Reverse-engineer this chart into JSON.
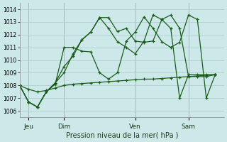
{
  "title": "Pression niveau de la mer( hPa )",
  "bg_color": "#cce8e8",
  "grid_color": "#aacccc",
  "line_color": "#1a5c1a",
  "ylim": [
    1005.5,
    1014.5
  ],
  "xlabel_color": "#1a3c1a",
  "day_labels": [
    "Jeu",
    "Dim",
    "Ven",
    "Sam"
  ],
  "day_positions": [
    1,
    5,
    13,
    19
  ],
  "xlim": [
    0,
    23
  ],
  "series_flat_x": [
    0,
    1,
    2,
    3,
    4,
    5,
    6,
    7,
    8,
    9,
    10,
    11,
    12,
    13,
    14,
    15,
    16,
    17,
    18,
    19,
    20,
    21,
    22
  ],
  "series_flat_y": [
    1008.0,
    1007.7,
    1007.5,
    1007.6,
    1007.8,
    1008.0,
    1008.1,
    1008.15,
    1008.2,
    1008.25,
    1008.3,
    1008.35,
    1008.4,
    1008.45,
    1008.5,
    1008.5,
    1008.55,
    1008.6,
    1008.65,
    1008.7,
    1008.75,
    1008.8,
    1008.85
  ],
  "series_main_x": [
    0,
    1,
    2,
    3,
    4,
    5,
    6,
    7,
    8,
    9,
    10,
    11,
    12,
    13,
    14,
    15,
    16,
    17,
    18,
    19,
    20,
    21,
    22
  ],
  "series_main_y": [
    1008.0,
    1006.7,
    1006.3,
    1007.5,
    1008.1,
    1011.0,
    1011.0,
    1010.7,
    1010.65,
    1009.0,
    1008.5,
    1009.0,
    1011.5,
    1012.2,
    1013.4,
    1012.5,
    1011.45,
    1011.0,
    1011.4,
    1013.55,
    1013.2,
    1007.0,
    1008.85
  ],
  "series_b_x": [
    0,
    1,
    2,
    3,
    4,
    5,
    6,
    7,
    8,
    9,
    10,
    11,
    12,
    13,
    14,
    15,
    16,
    17,
    18,
    19,
    20,
    21,
    22
  ],
  "series_b_y": [
    1008.0,
    1006.7,
    1006.3,
    1007.5,
    1008.2,
    1009.0,
    1010.5,
    1011.6,
    1012.2,
    1013.35,
    1013.35,
    1012.25,
    1012.5,
    1011.5,
    1011.4,
    1011.5,
    1013.2,
    1013.55,
    1012.5,
    1008.7,
    1008.7,
    1008.7,
    1008.85
  ],
  "series_c_x": [
    0,
    1,
    2,
    3,
    4,
    5,
    6,
    7,
    8,
    9,
    10,
    11,
    12,
    13,
    14,
    15,
    16,
    17,
    18,
    19,
    20,
    21,
    22
  ],
  "series_c_y": [
    1008.0,
    1006.7,
    1006.3,
    1007.5,
    1008.2,
    1009.5,
    1010.3,
    1011.6,
    1012.2,
    1013.35,
    1012.5,
    1011.45,
    1011.0,
    1010.5,
    1011.5,
    1013.55,
    1013.2,
    1012.5,
    1007.0,
    1008.85,
    1008.85,
    1008.85,
    1008.85
  ]
}
